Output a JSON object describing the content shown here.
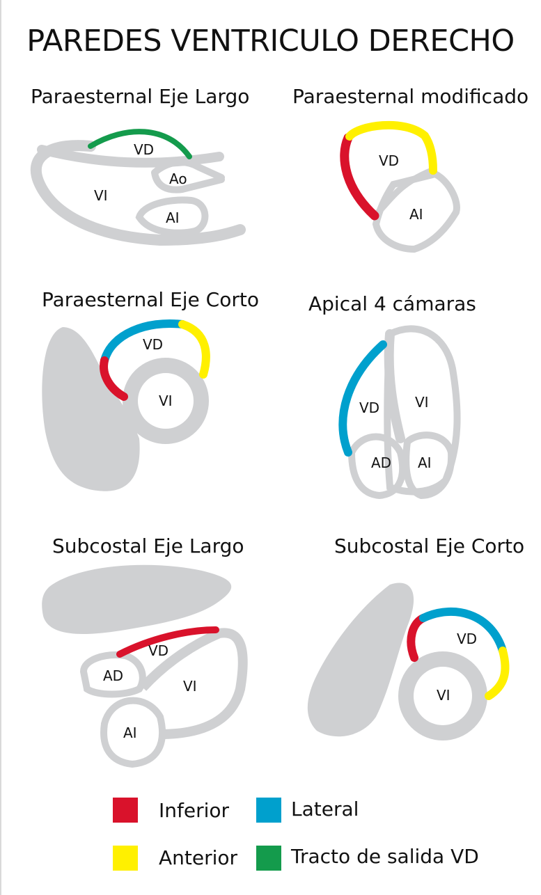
{
  "title": "PAREDES VENTRICULO DERECHO",
  "colors": {
    "inferior": "#d9122b",
    "anterior": "#fff000",
    "lateral": "#00a0cd",
    "tracto": "#149b4c",
    "structure": "#cfd0d2"
  },
  "views": [
    {
      "title": "Paraesternal Eje Largo",
      "labels": {
        "vd": "VD",
        "vi": "VI",
        "ao": "Ao",
        "ai": "AI"
      }
    },
    {
      "title": "Paraesternal modificado",
      "labels": {
        "vd": "VD",
        "ai": "AI"
      }
    },
    {
      "title": "Paraesternal Eje Corto",
      "labels": {
        "vd": "VD",
        "vi": "VI"
      }
    },
    {
      "title": "Apical 4 cámaras",
      "labels": {
        "vd": "VD",
        "vi": "VI",
        "ad": "AD",
        "ai": "AI"
      }
    },
    {
      "title": "Subcostal Eje Largo",
      "labels": {
        "vd": "VD",
        "ad": "AD",
        "vi": "VI",
        "ai": "AI"
      }
    },
    {
      "title": "Subcostal Eje Corto",
      "labels": {
        "vd": "VD",
        "vi": "VI"
      }
    }
  ],
  "legend": [
    {
      "label": "Inferior",
      "color": "#d9122b"
    },
    {
      "label": "Lateral",
      "color": "#00a0cd"
    },
    {
      "label": "Anterior",
      "color": "#fff000"
    },
    {
      "label": "Tracto de salida VD",
      "color": "#149b4c"
    }
  ]
}
